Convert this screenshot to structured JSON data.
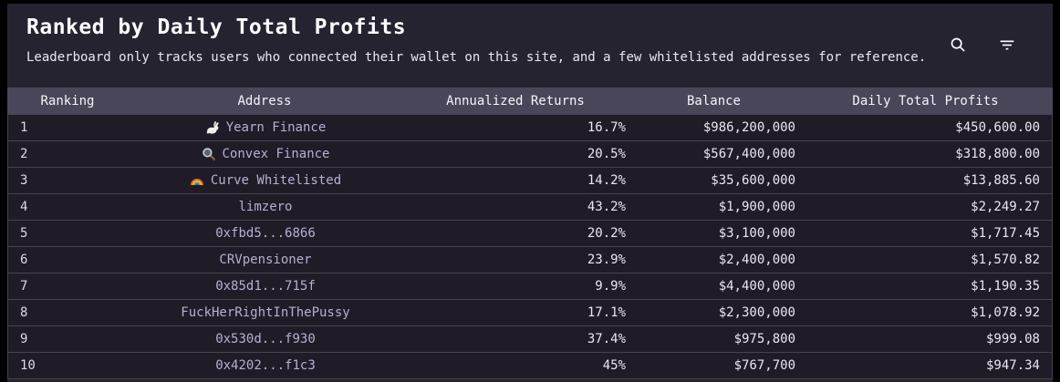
{
  "header": {
    "title": "Ranked by Daily Total Profits",
    "subtitle": "Leaderboard only tracks users who connected their wallet on this site, and a few whitelisted addresses for reference.",
    "icons": {
      "search": "search-icon",
      "filter": "filter-icon"
    }
  },
  "colors": {
    "panel_bg": "#262331",
    "table_header_bg": "#4a4659",
    "row_bg": "#1f1c28",
    "divider": "#474252",
    "address_text": "#b9aed2",
    "value_text": "#e9e7ef"
  },
  "table": {
    "columns": [
      "Ranking",
      "Address",
      "Annualized Returns",
      "Balance",
      "Daily Total Profits"
    ],
    "rows": [
      {
        "ranking": "1",
        "icon": "rabbit",
        "address": "Yearn Finance",
        "annualized_returns": "16.7%",
        "balance": "$986,200,000",
        "daily_total_profits": "$450,600.00"
      },
      {
        "ranking": "2",
        "icon": "magnifier",
        "address": "Convex Finance",
        "annualized_returns": "20.5%",
        "balance": "$567,400,000",
        "daily_total_profits": "$318,800.00"
      },
      {
        "ranking": "3",
        "icon": "rainbow",
        "address": "Curve Whitelisted",
        "annualized_returns": "14.2%",
        "balance": "$35,600,000",
        "daily_total_profits": "$13,885.60"
      },
      {
        "ranking": "4",
        "icon": null,
        "address": "limzero",
        "annualized_returns": "43.2%",
        "balance": "$1,900,000",
        "daily_total_profits": "$2,249.27"
      },
      {
        "ranking": "5",
        "icon": null,
        "address": "0xfbd5...6866",
        "annualized_returns": "20.2%",
        "balance": "$3,100,000",
        "daily_total_profits": "$1,717.45"
      },
      {
        "ranking": "6",
        "icon": null,
        "address": "CRVpensioner",
        "annualized_returns": "23.9%",
        "balance": "$2,400,000",
        "daily_total_profits": "$1,570.82"
      },
      {
        "ranking": "7",
        "icon": null,
        "address": "0x85d1...715f",
        "annualized_returns": "9.9%",
        "balance": "$4,400,000",
        "daily_total_profits": "$1,190.35"
      },
      {
        "ranking": "8",
        "icon": null,
        "address": "FuckHerRightInThePussy",
        "annualized_returns": "17.1%",
        "balance": "$2,300,000",
        "daily_total_profits": "$1,078.92"
      },
      {
        "ranking": "9",
        "icon": null,
        "address": "0x530d...f930",
        "annualized_returns": "37.4%",
        "balance": "$975,800",
        "daily_total_profits": "$999.08"
      },
      {
        "ranking": "10",
        "icon": null,
        "address": "0x4202...f1c3",
        "annualized_returns": "45%",
        "balance": "$767,700",
        "daily_total_profits": "$947.34"
      }
    ]
  }
}
